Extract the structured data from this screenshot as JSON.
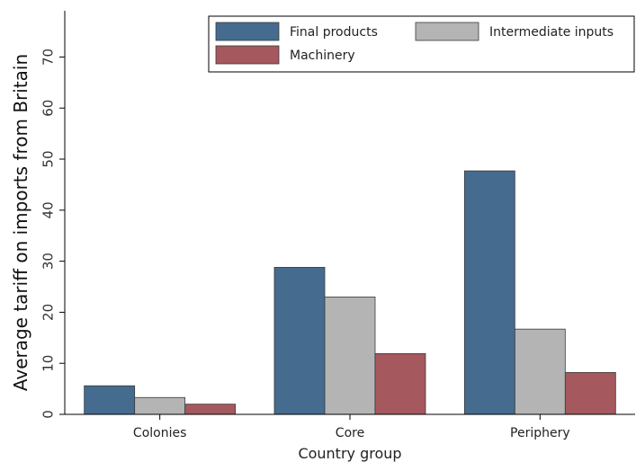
{
  "chart_data": {
    "type": "bar",
    "categories": [
      "Colonies",
      "Core",
      "Periphery"
    ],
    "series": [
      {
        "name": "Final products",
        "values": [
          5.6,
          28.8,
          47.7
        ],
        "color": "#456b8f"
      },
      {
        "name": "Intermediate inputs",
        "values": [
          3.3,
          23.0,
          16.7
        ],
        "color": "#b4b4b4"
      },
      {
        "name": "Machinery",
        "values": [
          2.0,
          11.9,
          8.2
        ],
        "color": "#a5585e"
      }
    ],
    "title": "",
    "xlabel": "Country group",
    "ylabel": "Average tariff on imports from Britain",
    "ylim": [
      0,
      78
    ],
    "yticks": [
      0,
      10,
      20,
      30,
      40,
      50,
      60,
      70
    ],
    "grid": false,
    "legend_position": "top-right"
  }
}
